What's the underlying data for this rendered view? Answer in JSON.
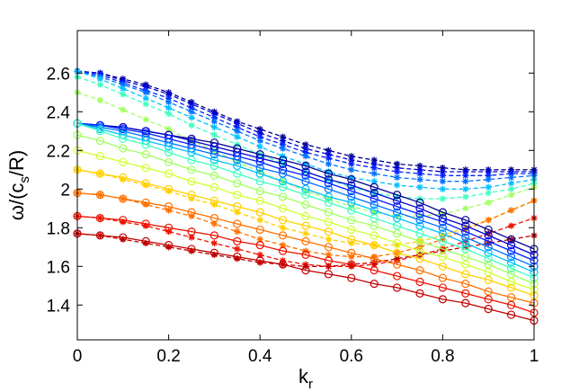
{
  "chart_data": {
    "type": "line",
    "title": "",
    "xlabel": "k",
    "xlabel_sub": "r",
    "ylabel_parts": {
      "pre": "ω/(c",
      "sub": "s",
      "post": "/R)"
    },
    "xlim": [
      0,
      1
    ],
    "ylim": [
      1.22,
      2.82
    ],
    "xticks": [
      0,
      0.2,
      0.4,
      0.6,
      0.8,
      1
    ],
    "xtick_labels": [
      "0",
      "0.2",
      "0.4",
      "0.6",
      "0.8",
      "1"
    ],
    "yticks": [
      1.4,
      1.6,
      1.8,
      2.0,
      2.2,
      2.4,
      2.6
    ],
    "ytick_labels": [
      "1.4",
      "1.6",
      "1.8",
      "2",
      "2.2",
      "2.4",
      "2.6"
    ],
    "grid": false,
    "legend": "none",
    "x": [
      0,
      0.05,
      0.1,
      0.15,
      0.2,
      0.25,
      0.3,
      0.35,
      0.4,
      0.45,
      0.5,
      0.55,
      0.6,
      0.65,
      0.7,
      0.75,
      0.8,
      0.85,
      0.9,
      0.95,
      1
    ],
    "series": [
      {
        "color": "#00008f",
        "style": "dashed",
        "marker": "asterisk",
        "values": [
          2.61,
          2.6,
          2.57,
          2.54,
          2.5,
          2.45,
          2.4,
          2.35,
          2.31,
          2.27,
          2.23,
          2.2,
          2.17,
          2.15,
          2.13,
          2.12,
          2.11,
          2.1,
          2.1,
          2.1,
          2.1
        ]
      },
      {
        "color": "#0000d0",
        "style": "dashed",
        "marker": "asterisk",
        "values": [
          2.61,
          2.6,
          2.56,
          2.53,
          2.49,
          2.44,
          2.39,
          2.34,
          2.29,
          2.25,
          2.21,
          2.18,
          2.15,
          2.13,
          2.11,
          2.1,
          2.09,
          2.09,
          2.09,
          2.09,
          2.09
        ]
      },
      {
        "color": "#0020ff",
        "style": "dashed",
        "marker": "asterisk",
        "values": [
          2.61,
          2.59,
          2.55,
          2.51,
          2.47,
          2.42,
          2.37,
          2.32,
          2.27,
          2.23,
          2.19,
          2.16,
          2.13,
          2.11,
          2.09,
          2.08,
          2.07,
          2.07,
          2.07,
          2.08,
          2.08
        ]
      },
      {
        "color": "#0070ff",
        "style": "dashed",
        "marker": "asterisk",
        "values": [
          2.61,
          2.58,
          2.54,
          2.5,
          2.45,
          2.4,
          2.35,
          2.3,
          2.25,
          2.21,
          2.17,
          2.13,
          2.1,
          2.08,
          2.06,
          2.05,
          2.04,
          2.04,
          2.05,
          2.06,
          2.07
        ]
      },
      {
        "color": "#00bfff",
        "style": "dashed",
        "marker": "asterisk",
        "values": [
          2.61,
          2.57,
          2.52,
          2.47,
          2.42,
          2.37,
          2.32,
          2.27,
          2.22,
          2.17,
          2.13,
          2.09,
          2.06,
          2.04,
          2.02,
          2.01,
          2.0,
          2.0,
          2.01,
          2.03,
          2.05
        ]
      },
      {
        "color": "#40ffbf",
        "style": "dashed",
        "marker": "asterisk",
        "values": [
          2.58,
          2.54,
          2.49,
          2.44,
          2.39,
          2.33,
          2.28,
          2.23,
          2.18,
          2.13,
          2.09,
          2.05,
          2.01,
          1.98,
          1.96,
          1.95,
          1.95,
          1.96,
          1.98,
          2.0,
          2.03
        ]
      },
      {
        "color": "#a0ff60",
        "style": "dashed",
        "marker": "asterisk",
        "values": [
          2.5,
          2.46,
          2.41,
          2.36,
          2.31,
          2.25,
          2.2,
          2.14,
          2.09,
          2.04,
          1.99,
          1.95,
          1.91,
          1.88,
          1.86,
          1.86,
          1.87,
          1.9,
          1.93,
          1.97,
          2.01
        ]
      },
      {
        "color": "#ffd000",
        "style": "dashed",
        "marker": "asterisk",
        "values": [
          2.1,
          2.08,
          2.05,
          2.02,
          1.99,
          1.95,
          1.92,
          1.88,
          1.84,
          1.8,
          1.77,
          1.74,
          1.72,
          1.71,
          1.71,
          1.73,
          1.76,
          1.8,
          1.84,
          1.89,
          1.94
        ]
      },
      {
        "color": "#ff7000",
        "style": "dashed",
        "marker": "asterisk",
        "values": [
          1.98,
          1.97,
          1.95,
          1.92,
          1.89,
          1.86,
          1.82,
          1.78,
          1.74,
          1.71,
          1.68,
          1.66,
          1.65,
          1.65,
          1.67,
          1.7,
          1.74,
          1.79,
          1.84,
          1.89,
          1.94
        ]
      },
      {
        "color": "#ee1000",
        "style": "dashed",
        "marker": "asterisk",
        "values": [
          1.86,
          1.85,
          1.83,
          1.81,
          1.78,
          1.75,
          1.72,
          1.69,
          1.66,
          1.63,
          1.61,
          1.6,
          1.6,
          1.61,
          1.63,
          1.66,
          1.69,
          1.73,
          1.77,
          1.81,
          1.85
        ]
      },
      {
        "color": "#c00000",
        "style": "dashed",
        "marker": "asterisk",
        "values": [
          1.77,
          1.76,
          1.74,
          1.72,
          1.7,
          1.68,
          1.66,
          1.64,
          1.62,
          1.61,
          1.6,
          1.6,
          1.61,
          1.62,
          1.64,
          1.66,
          1.68,
          1.7,
          1.72,
          1.74,
          1.76
        ]
      },
      {
        "color": "#00008f",
        "style": "solid",
        "marker": "circle",
        "values": [
          2.34,
          2.33,
          2.32,
          2.3,
          2.28,
          2.26,
          2.24,
          2.21,
          2.18,
          2.15,
          2.12,
          2.08,
          2.05,
          2.01,
          1.97,
          1.93,
          1.88,
          1.84,
          1.79,
          1.74,
          1.69
        ]
      },
      {
        "color": "#0000d0",
        "style": "solid",
        "marker": "circle",
        "values": [
          2.34,
          2.33,
          2.32,
          2.3,
          2.28,
          2.25,
          2.22,
          2.19,
          2.16,
          2.13,
          2.09,
          2.05,
          2.02,
          1.98,
          1.94,
          1.9,
          1.85,
          1.81,
          1.76,
          1.71,
          1.66
        ]
      },
      {
        "color": "#0020ff",
        "style": "solid",
        "marker": "circle",
        "values": [
          2.34,
          2.33,
          2.31,
          2.29,
          2.26,
          2.23,
          2.2,
          2.17,
          2.14,
          2.1,
          2.07,
          2.03,
          1.99,
          1.95,
          1.91,
          1.87,
          1.83,
          1.78,
          1.73,
          1.68,
          1.63
        ]
      },
      {
        "color": "#0070ff",
        "style": "solid",
        "marker": "circle",
        "values": [
          2.34,
          2.32,
          2.3,
          2.27,
          2.24,
          2.21,
          2.18,
          2.15,
          2.11,
          2.08,
          2.04,
          2.0,
          1.96,
          1.92,
          1.88,
          1.84,
          1.8,
          1.75,
          1.7,
          1.65,
          1.6
        ]
      },
      {
        "color": "#00bfff",
        "style": "solid",
        "marker": "circle",
        "values": [
          2.34,
          2.31,
          2.28,
          2.25,
          2.22,
          2.19,
          2.15,
          2.12,
          2.08,
          2.04,
          2.0,
          1.96,
          1.93,
          1.89,
          1.85,
          1.81,
          1.77,
          1.72,
          1.67,
          1.62,
          1.57
        ]
      },
      {
        "color": "#40ffbf",
        "style": "solid",
        "marker": "circle",
        "values": [
          2.34,
          2.3,
          2.26,
          2.23,
          2.19,
          2.15,
          2.12,
          2.08,
          2.04,
          2.01,
          1.97,
          1.93,
          1.89,
          1.85,
          1.81,
          1.77,
          1.73,
          1.69,
          1.64,
          1.59,
          1.54
        ]
      },
      {
        "color": "#a0ff60",
        "style": "solid",
        "marker": "circle",
        "values": [
          2.28,
          2.25,
          2.21,
          2.18,
          2.14,
          2.1,
          2.07,
          2.03,
          1.99,
          1.96,
          1.92,
          1.88,
          1.84,
          1.81,
          1.77,
          1.73,
          1.69,
          1.65,
          1.61,
          1.56,
          1.51
        ]
      },
      {
        "color": "#d0ff30",
        "style": "solid",
        "marker": "circle",
        "values": [
          2.2,
          2.17,
          2.14,
          2.11,
          2.08,
          2.04,
          2.01,
          1.97,
          1.94,
          1.9,
          1.86,
          1.83,
          1.79,
          1.76,
          1.72,
          1.68,
          1.65,
          1.61,
          1.57,
          1.52,
          1.48
        ]
      },
      {
        "color": "#ffd000",
        "style": "solid",
        "marker": "circle",
        "values": [
          2.1,
          2.08,
          2.06,
          2.03,
          2.0,
          1.97,
          1.94,
          1.91,
          1.88,
          1.84,
          1.81,
          1.78,
          1.74,
          1.71,
          1.67,
          1.64,
          1.6,
          1.56,
          1.53,
          1.49,
          1.45
        ]
      },
      {
        "color": "#ff7000",
        "style": "solid",
        "marker": "circle",
        "values": [
          1.98,
          1.97,
          1.95,
          1.93,
          1.91,
          1.88,
          1.85,
          1.82,
          1.79,
          1.76,
          1.73,
          1.7,
          1.67,
          1.64,
          1.61,
          1.58,
          1.54,
          1.51,
          1.47,
          1.44,
          1.41
        ]
      },
      {
        "color": "#ee1000",
        "style": "solid",
        "marker": "circle",
        "values": [
          1.86,
          1.85,
          1.84,
          1.82,
          1.8,
          1.78,
          1.76,
          1.73,
          1.71,
          1.68,
          1.66,
          1.63,
          1.61,
          1.58,
          1.55,
          1.52,
          1.49,
          1.46,
          1.43,
          1.4,
          1.36
        ]
      },
      {
        "color": "#c00000",
        "style": "solid",
        "marker": "circle",
        "values": [
          1.77,
          1.76,
          1.75,
          1.73,
          1.71,
          1.69,
          1.67,
          1.65,
          1.63,
          1.61,
          1.58,
          1.56,
          1.54,
          1.51,
          1.49,
          1.46,
          1.43,
          1.41,
          1.38,
          1.35,
          1.32
        ]
      }
    ]
  }
}
